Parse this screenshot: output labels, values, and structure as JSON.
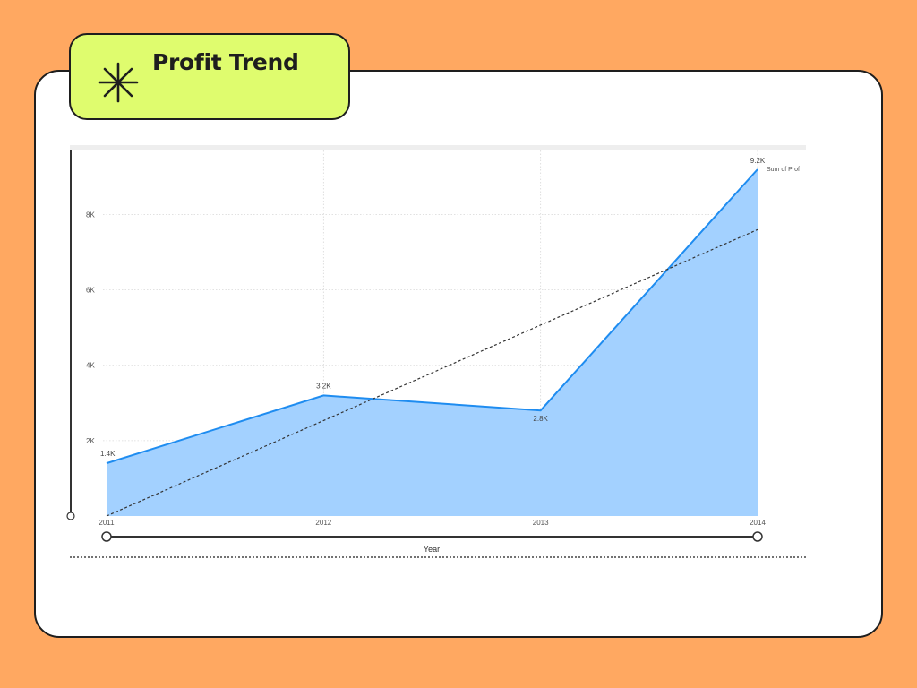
{
  "header": {
    "title": "Profit Trend",
    "icon": "asterisk-icon"
  },
  "colors": {
    "background": "#FFA861",
    "title_bg": "#DFFC6E",
    "area_fill": "#A3D1FF",
    "line": "#1E8CF0",
    "trend": "#333333"
  },
  "chart_data": {
    "type": "area",
    "title": "Profit Trend",
    "xlabel": "Year",
    "ylabel": "",
    "categories": [
      "2011",
      "2012",
      "2013",
      "2014"
    ],
    "series": [
      {
        "name": "Sum of Prof",
        "values": [
          1400,
          3200,
          2800,
          9200
        ],
        "data_labels": [
          "1.4K",
          "3.2K",
          "2.8K",
          "9.2K"
        ]
      }
    ],
    "trend_line": {
      "style": "dashed",
      "start": 0,
      "end": 7600
    },
    "y_ticks": [
      {
        "value": 2000,
        "label": "2K"
      },
      {
        "value": 4000,
        "label": "4K"
      },
      {
        "value": 6000,
        "label": "6K"
      },
      {
        "value": 8000,
        "label": "8K"
      }
    ],
    "ylim": [
      0,
      9200
    ],
    "grid": true,
    "legend": "top-right",
    "x_range_slider": true,
    "y_range_slider": true
  }
}
